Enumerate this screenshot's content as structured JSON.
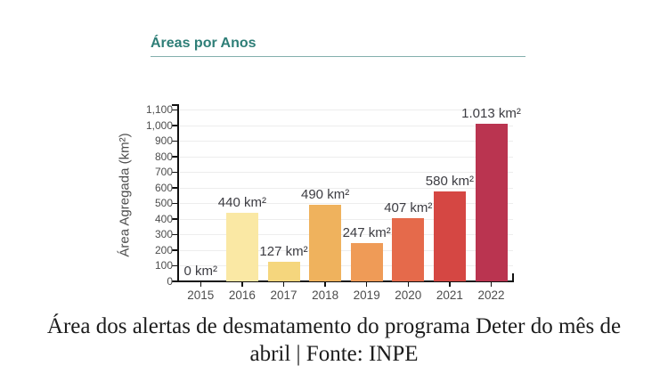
{
  "chart": {
    "title": "Áreas por Anos",
    "ylabel": "Área Agregada (km²)",
    "title_color": "#2E7E77",
    "axis_color": "#111111",
    "grid_color": "#ededed",
    "tick_label_color": "#4d4d4d",
    "value_label_color": "#3c3c42"
  },
  "chart_data": {
    "type": "bar",
    "title": "Áreas por Anos",
    "xlabel": "",
    "ylabel": "Área Agregada (km²)",
    "categories": [
      "2015",
      "2016",
      "2017",
      "2018",
      "2019",
      "2020",
      "2021",
      "2022"
    ],
    "values": [
      0,
      440,
      127,
      490,
      247,
      407,
      580,
      1013
    ],
    "value_labels": [
      "0 km²",
      "440 km²",
      "127 km²",
      "490 km²",
      "247 km²",
      "407 km²",
      "580 km²",
      "1.013 km²"
    ],
    "bar_colors": [
      "#FDF3C9",
      "#FAE8A4",
      "#F5D67D",
      "#EFB25D",
      "#EF9B57",
      "#E56A4B",
      "#D54743",
      "#BA3450"
    ],
    "ylim": [
      0,
      1100
    ],
    "ytick_step": 100,
    "ytick_labels": [
      "0",
      "100",
      "200",
      "300",
      "400",
      "500",
      "600",
      "700",
      "800",
      "900",
      "1,000",
      "1,100"
    ],
    "grid": true,
    "legend": false
  },
  "caption": {
    "line1": "Área dos alertas de desmatamento do programa Deter do mês de",
    "line2": "abril | Fonte: INPE"
  }
}
